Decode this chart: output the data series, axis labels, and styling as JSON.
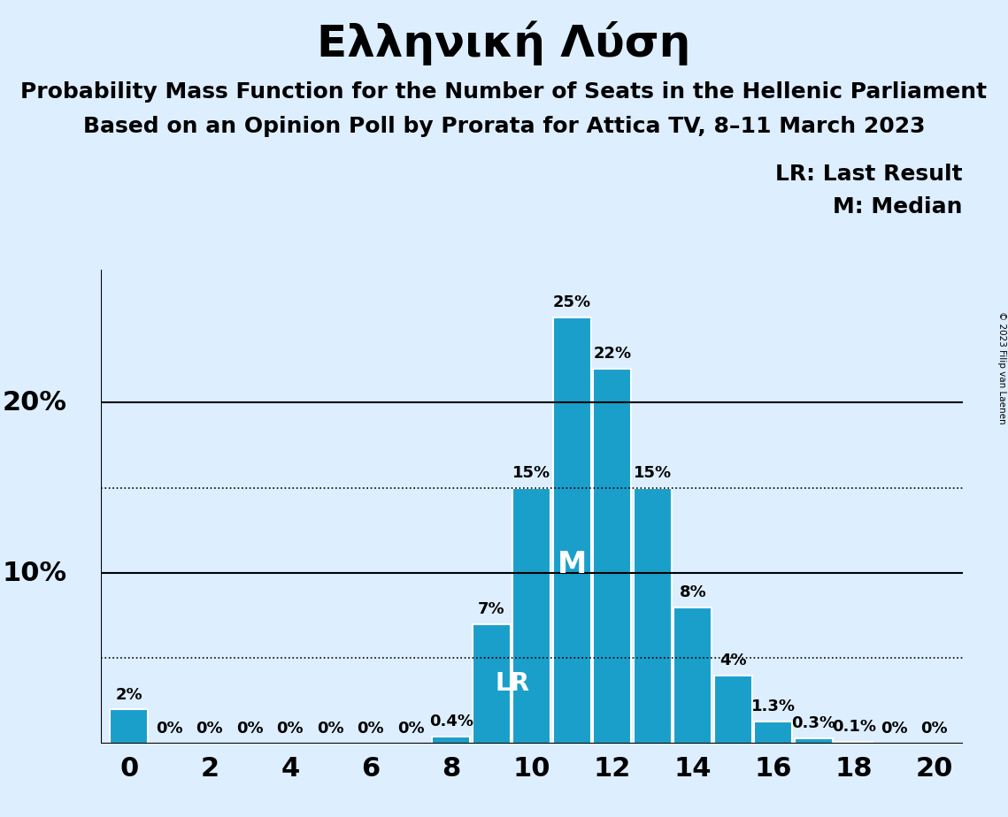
{
  "title": "Ελληνική Λύση",
  "subtitle1": "Probability Mass Function for the Number of Seats in the Hellenic Parliament",
  "subtitle2": "Based on an Opinion Poll by Prorata for Attica TV, 8–11 March 2023",
  "copyright": "© 2023 Filip van Laenen",
  "seats": [
    0,
    1,
    2,
    3,
    4,
    5,
    6,
    7,
    8,
    9,
    10,
    11,
    12,
    13,
    14,
    15,
    16,
    17,
    18,
    19,
    20
  ],
  "probabilities": [
    0.02,
    0.0,
    0.0,
    0.0,
    0.0,
    0.0,
    0.0,
    0.0,
    0.004,
    0.07,
    0.15,
    0.25,
    0.22,
    0.15,
    0.08,
    0.04,
    0.013,
    0.003,
    0.001,
    0.0,
    0.0
  ],
  "bar_color": "#1a9fca",
  "background_color": "#ddeeff",
  "bar_edge_color": "white",
  "last_result_seat": 9,
  "median_seat": 11,
  "lr_label": "LR",
  "m_label": "M",
  "legend_lr": "LR: Last Result",
  "legend_m": "M: Median",
  "solid_yticks": [
    0.0,
    0.1,
    0.2
  ],
  "dotted_yticks": [
    0.05,
    0.15
  ],
  "bar_labels": [
    "2%",
    "0%",
    "0%",
    "0%",
    "0%",
    "0%",
    "0%",
    "0%",
    "0.4%",
    "7%",
    "15%",
    "25%",
    "22%",
    "15%",
    "8%",
    "4%",
    "1.3%",
    "0.3%",
    "0.1%",
    "0%",
    "0%"
  ],
  "title_fontsize": 36,
  "subtitle_fontsize": 18,
  "axis_label_fontsize": 22,
  "legend_fontsize": 18,
  "bar_label_fontsize": 13,
  "ylim_max": 0.278,
  "xlim_min": -0.7,
  "xlim_max": 20.7
}
